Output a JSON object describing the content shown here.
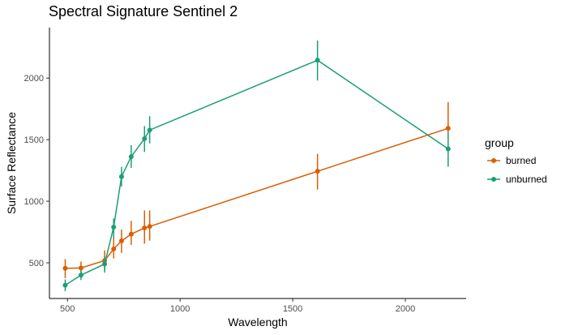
{
  "chart_data": {
    "type": "line",
    "title": "Spectral Signature Sentinel 2",
    "xlabel": "Wavelength",
    "ylabel": "Surface Reflectance",
    "xlim": [
      420,
      2270
    ],
    "ylim": [
      210,
      2410
    ],
    "x_ticks": [
      500,
      1000,
      1500,
      2000
    ],
    "x_tick_labels": [
      "500",
      "1000",
      "1500",
      "2000"
    ],
    "y_ticks": [
      500,
      1000,
      1500,
      2000
    ],
    "y_tick_labels": [
      "500",
      "1000",
      "1500",
      "2000"
    ],
    "grid": false,
    "legend_position": "right",
    "legend_title": "group",
    "series": [
      {
        "name": "burned",
        "color": "#D95F02",
        "x": [
          490,
          560,
          665,
          705,
          740,
          783,
          842,
          865,
          1610,
          2190
        ],
        "y": [
          455,
          458,
          518,
          612,
          678,
          733,
          783,
          795,
          1243,
          1592
        ],
        "err_low": [
          375,
          400,
          440,
          535,
          580,
          645,
          655,
          680,
          1095,
          1385
        ],
        "err_high": [
          530,
          510,
          600,
          700,
          770,
          840,
          925,
          925,
          1385,
          1805
        ]
      },
      {
        "name": "unburned",
        "color": "#1B9E77",
        "x": [
          490,
          560,
          665,
          705,
          740,
          783,
          842,
          865,
          1610,
          2190
        ],
        "y": [
          318,
          400,
          490,
          790,
          1200,
          1362,
          1508,
          1578,
          2145,
          1425
        ],
        "err_low": [
          270,
          360,
          420,
          700,
          1120,
          1270,
          1400,
          1470,
          1980,
          1280
        ],
        "err_high": [
          365,
          440,
          550,
          860,
          1280,
          1455,
          1610,
          1690,
          2305,
          1560
        ]
      }
    ]
  }
}
